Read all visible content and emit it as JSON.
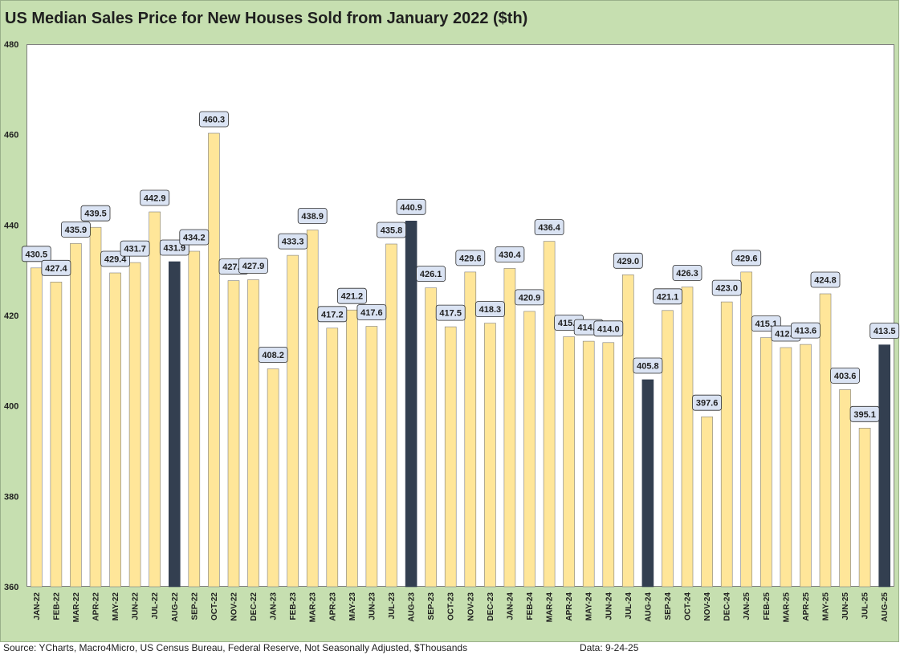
{
  "chart_data": {
    "type": "bar",
    "title": "US Median Sales Price for New Houses Sold from January 2022 ($th)",
    "xlabel": "",
    "ylabel": "",
    "ylim": [
      360,
      480
    ],
    "yticks": [
      360,
      380,
      400,
      420,
      440,
      460,
      480
    ],
    "categories": [
      "JAN-22",
      "FEB-22",
      "MAR-22",
      "APR-22",
      "MAY-22",
      "JUN-22",
      "JUL-22",
      "AUG-22",
      "SEP-22",
      "OCT-22",
      "NOV-22",
      "DEC-22",
      "JAN-23",
      "FEB-23",
      "MAR-23",
      "APR-23",
      "MAY-23",
      "JUN-23",
      "JUL-23",
      "AUG-23",
      "SEP-23",
      "OCT-23",
      "NOV-23",
      "DEC-23",
      "JAN-24",
      "FEB-24",
      "MAR-24",
      "APR-24",
      "MAY-24",
      "JUN-24",
      "JUL-24",
      "AUG-24",
      "SEP-24",
      "OCT-24",
      "NOV-24",
      "DEC-24",
      "JAN-25",
      "FEB-25",
      "MAR-25",
      "APR-25",
      "MAY-25",
      "JUN-25",
      "JUL-25",
      "AUG-25"
    ],
    "values": [
      430.5,
      427.4,
      435.9,
      439.5,
      429.4,
      431.7,
      442.9,
      431.9,
      434.2,
      460.3,
      427.7,
      427.9,
      408.2,
      433.3,
      438.9,
      417.2,
      421.2,
      417.6,
      435.8,
      440.9,
      426.1,
      417.5,
      429.6,
      418.3,
      430.4,
      420.9,
      436.4,
      415.3,
      414.3,
      414.0,
      429.0,
      405.8,
      421.1,
      426.3,
      397.6,
      423.0,
      429.6,
      415.1,
      412.9,
      413.6,
      424.8,
      403.6,
      395.1,
      413.5
    ],
    "data_labels": [
      "430.5",
      "427.4",
      "435.9",
      "439.5",
      "429.4",
      "431.7",
      "442.9",
      "431.9",
      "434.2",
      "460.3",
      "427.7",
      "427.9",
      "408.2",
      "433.3",
      "438.9",
      "417.2",
      "421.2",
      "417.6",
      "435.8",
      "440.9",
      "426.1",
      "417.5",
      "429.6",
      "418.3",
      "430.4",
      "420.9",
      "436.4",
      "415.3",
      "414.3",
      "414.0",
      "429.0",
      "405.8",
      "421.1",
      "426.3",
      "397.6",
      "423.0",
      "429.6",
      "415.1",
      "412.9",
      "413.6",
      "424.8",
      "403.6",
      "395.1",
      "413.5"
    ],
    "highlight_categories": [
      "AUG-22",
      "AUG-23",
      "AUG-24",
      "AUG-25"
    ],
    "grid": false
  },
  "colors": {
    "bar": "#ffe699",
    "bar_outline": "#7f7f7f",
    "highlight_bar": "#333f50",
    "label_box": "#dae3f3",
    "label_border": "#2f2f2f"
  },
  "footer": {
    "source": "Source: YCharts, Macro4Micro, US Census Bureau, Federal Reserve, Not Seasonally Adjusted, $Thousands",
    "date": "Data: 9-24-25"
  }
}
